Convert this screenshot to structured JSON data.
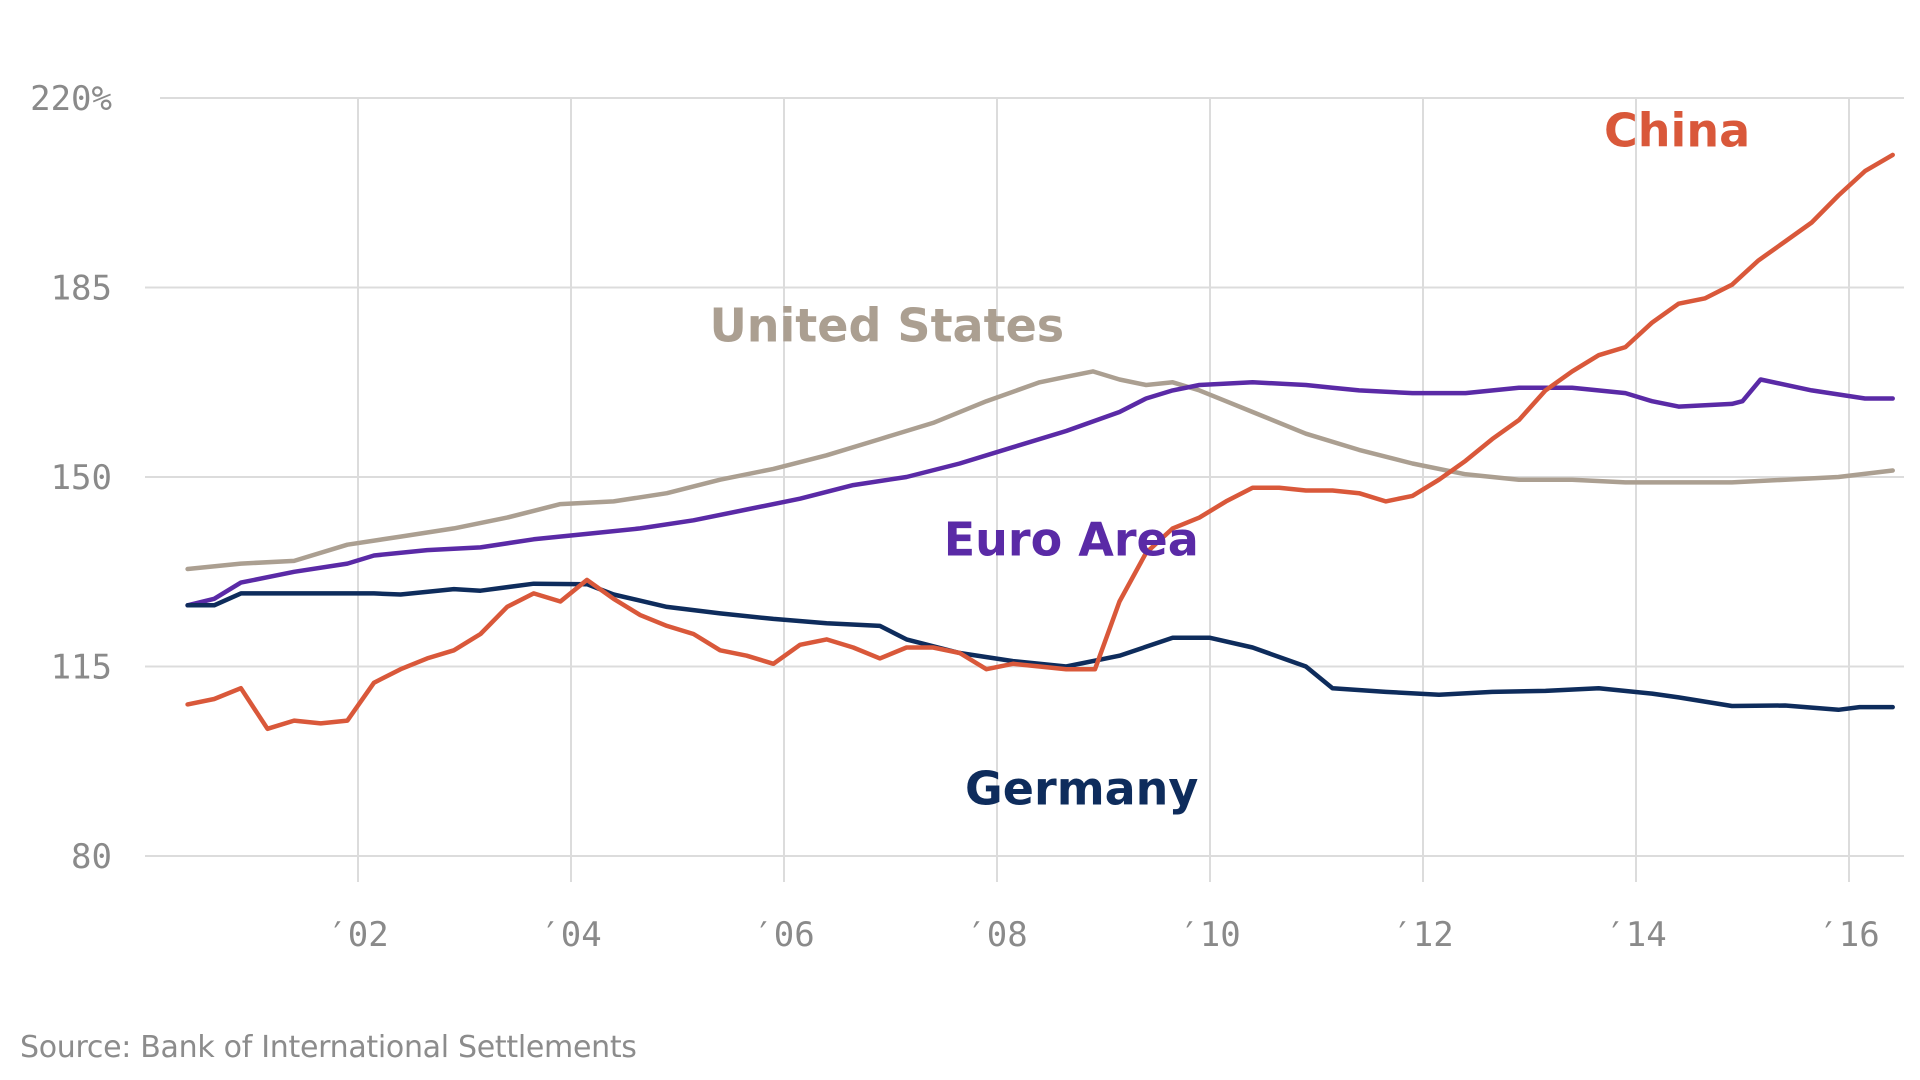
{
  "chart_data": {
    "type": "line",
    "title": "",
    "xlabel": "",
    "ylabel": "",
    "ylim": [
      80,
      220
    ],
    "xlim": [
      2000.4,
      2016.41
    ],
    "grid": true,
    "legend": "inline-labels",
    "y_ticks": [
      {
        "value": 220,
        "label": "220%"
      },
      {
        "value": 185,
        "label": "185"
      },
      {
        "value": 150,
        "label": "150"
      },
      {
        "value": 115,
        "label": "115"
      },
      {
        "value": 80,
        "label": "80"
      }
    ],
    "x_ticks": [
      {
        "value": 2002,
        "label": "′02"
      },
      {
        "value": 2004,
        "label": "′04"
      },
      {
        "value": 2006,
        "label": "′06"
      },
      {
        "value": 2008,
        "label": "′08"
      },
      {
        "value": 2010,
        "label": "′10"
      },
      {
        "value": 2012,
        "label": "′12"
      },
      {
        "value": 2014,
        "label": "′14"
      },
      {
        "value": 2016,
        "label": "′16"
      }
    ],
    "series": [
      {
        "name": "United States",
        "color": "#ab9f91",
        "label_anchor": {
          "x": 2005.3,
          "y": 175
        },
        "x": [
          2000.4,
          2000.9,
          2001.4,
          2001.9,
          2002.4,
          2002.9,
          2003.4,
          2003.9,
          2004.4,
          2004.9,
          2005.4,
          2005.9,
          2006.4,
          2006.9,
          2007.4,
          2007.9,
          2008.4,
          2008.65,
          2008.9,
          2009.15,
          2009.4,
          2009.65,
          2009.9,
          2010.15,
          2010.4,
          2010.9,
          2011.4,
          2011.9,
          2012.4,
          2012.9,
          2013.4,
          2013.9,
          2014.4,
          2014.9,
          2015.4,
          2015.9,
          2016.41
        ],
        "values": [
          133,
          134,
          134.5,
          137.5,
          139,
          140.5,
          142.5,
          145,
          145.5,
          147,
          149.5,
          151.5,
          154,
          157,
          160,
          164,
          167.5,
          168.5,
          169.5,
          168,
          167,
          167.5,
          166,
          164,
          162,
          158,
          155,
          152.5,
          150.5,
          149.5,
          149.5,
          149,
          149,
          149,
          149.5,
          150,
          151.2
        ]
      },
      {
        "name": "Euro Area",
        "color": "#5a2aa6",
        "label_anchor": {
          "x": 2007.5,
          "y": 135.5
        },
        "x": [
          2000.4,
          2000.65,
          2000.9,
          2001.4,
          2001.9,
          2002.15,
          2002.65,
          2003.15,
          2003.65,
          2004.15,
          2004.65,
          2005.15,
          2005.65,
          2006.15,
          2006.65,
          2007.15,
          2007.65,
          2008.15,
          2008.65,
          2009.15,
          2009.4,
          2009.65,
          2009.9,
          2010.4,
          2010.9,
          2011.15,
          2011.4,
          2011.9,
          2012.4,
          2012.9,
          2013.4,
          2013.9,
          2014.15,
          2014.4,
          2014.9,
          2015.0,
          2015.17,
          2015.65,
          2016.15,
          2016.41
        ],
        "values": [
          126.3,
          127.5,
          130.5,
          132.5,
          134,
          135.5,
          136.5,
          137,
          138.5,
          139.5,
          140.5,
          142,
          144,
          146,
          148.5,
          150,
          152.5,
          155.5,
          158.5,
          162,
          164.5,
          166,
          167,
          167.5,
          167,
          166.5,
          166,
          165.5,
          165.5,
          166.5,
          166.5,
          165.5,
          164,
          163,
          163.5,
          164,
          168,
          166,
          164.5,
          164.5
        ]
      },
      {
        "name": "Germany",
        "color": "#0e2c5c",
        "label_anchor": {
          "x": 2007.7,
          "y": 89.5
        },
        "x": [
          2000.4,
          2000.65,
          2000.9,
          2001.4,
          2001.9,
          2002.15,
          2002.4,
          2002.9,
          2003.15,
          2003.65,
          2004.15,
          2004.4,
          2004.9,
          2005.4,
          2005.9,
          2006.4,
          2006.9,
          2007.15,
          2007.65,
          2008.15,
          2008.65,
          2009.15,
          2009.65,
          2010.0,
          2010.4,
          2010.9,
          2011.15,
          2011.65,
          2012.15,
          2012.65,
          2013.15,
          2013.65,
          2014.15,
          2014.4,
          2014.9,
          2015.4,
          2015.9,
          2016.1,
          2016.41
        ],
        "values": [
          126.3,
          126.3,
          128.5,
          128.5,
          128.5,
          128.5,
          128.3,
          129.3,
          129,
          130.3,
          130.2,
          128.3,
          126,
          124.8,
          123.8,
          123,
          122.5,
          120,
          117.5,
          116,
          115,
          117,
          120.3,
          120.3,
          118.5,
          115,
          111,
          110.3,
          109.8,
          110.3,
          110.5,
          111,
          110,
          109.3,
          107.7,
          107.8,
          107,
          107.5,
          107.5
        ]
      },
      {
        "name": "China",
        "color": "#d9583a",
        "label_anchor": {
          "x": 2013.7,
          "y": 211
        },
        "x": [
          2000.4,
          2000.65,
          2000.9,
          2001.15,
          2001.4,
          2001.65,
          2001.9,
          2002.15,
          2002.4,
          2002.65,
          2002.9,
          2003.15,
          2003.4,
          2003.65,
          2003.9,
          2004.15,
          2004.4,
          2004.65,
          2004.9,
          2005.15,
          2005.4,
          2005.65,
          2005.9,
          2006.15,
          2006.4,
          2006.65,
          2006.9,
          2007.15,
          2007.4,
          2007.65,
          2007.9,
          2008.15,
          2008.4,
          2008.65,
          2008.92,
          2009.15,
          2009.4,
          2009.65,
          2009.9,
          2010.15,
          2010.4,
          2010.65,
          2010.9,
          2011.15,
          2011.4,
          2011.65,
          2011.9,
          2012.15,
          2012.4,
          2012.65,
          2012.9,
          2013.15,
          2013.4,
          2013.65,
          2013.9,
          2014.15,
          2014.4,
          2014.65,
          2014.9,
          2015.15,
          2015.4,
          2015.65,
          2015.9,
          2016.15,
          2016.41
        ],
        "values": [
          108,
          109,
          111,
          103.5,
          105,
          104.5,
          105,
          112,
          114.5,
          116.5,
          118,
          121,
          126,
          128.5,
          127,
          131,
          127.5,
          124.5,
          122.5,
          121,
          118,
          117,
          115.5,
          119,
          120,
          118.5,
          116.5,
          118.5,
          118.5,
          117.5,
          114.5,
          115.5,
          115,
          114.5,
          114.5,
          127,
          136,
          140.5,
          142.5,
          145.5,
          148,
          148,
          147.5,
          147.5,
          147,
          145.5,
          146.5,
          149.5,
          153,
          157,
          160.5,
          166,
          169.5,
          172.5,
          174,
          178.5,
          182,
          183,
          185.5,
          190,
          193.5,
          197,
          202,
          206.5,
          209.5
        ]
      }
    ]
  },
  "source": "Source: Bank of International Settlements"
}
